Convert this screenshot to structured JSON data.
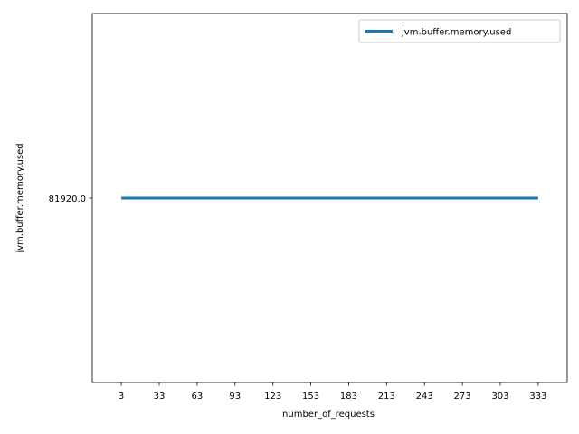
{
  "chart_data": {
    "type": "line",
    "title": "",
    "xlabel": "number_of_requests",
    "ylabel": "jvm.buffer.memory.used",
    "x_ticks": [
      "3",
      "33",
      "63",
      "93",
      "123",
      "153",
      "183",
      "213",
      "243",
      "273",
      "303",
      "333"
    ],
    "y_ticks": [
      81920.0
    ],
    "y_tick_labels": [
      "81920.0"
    ],
    "x": [
      3,
      33,
      63,
      93,
      123,
      153,
      183,
      213,
      243,
      273,
      303,
      333
    ],
    "xlim": [
      -20,
      356
    ],
    "ylim": [
      81916.0,
      81924.0
    ],
    "grid": false,
    "legend_position": "upper-right",
    "series": [
      {
        "name": "jvm.buffer.memory.used",
        "color": "#1f77b4",
        "values": [
          81920.0,
          81920.0,
          81920.0,
          81920.0,
          81920.0,
          81920.0,
          81920.0,
          81920.0,
          81920.0,
          81920.0,
          81920.0,
          81920.0
        ]
      }
    ]
  }
}
